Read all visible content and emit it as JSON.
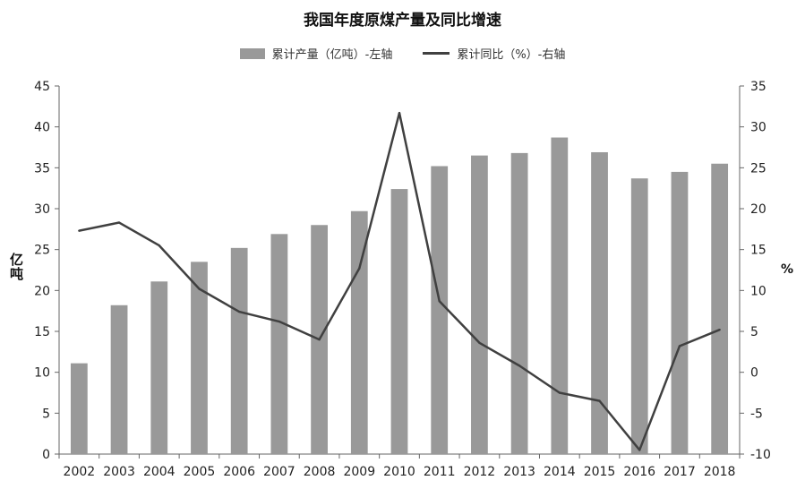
{
  "chart_data": {
    "type": "bar",
    "title": "我国年度原煤产量及同比增速",
    "categories": [
      "2002",
      "2003",
      "2004",
      "2005",
      "2006",
      "2007",
      "2008",
      "2009",
      "2010",
      "2011",
      "2012",
      "2013",
      "2014",
      "2015",
      "2016",
      "2017",
      "2018"
    ],
    "series": [
      {
        "name": "累计产量（亿吨）-左轴",
        "type": "bar",
        "axis": "left",
        "color": "#999999",
        "values": [
          11.1,
          18.2,
          21.1,
          23.5,
          25.2,
          26.9,
          28.0,
          29.7,
          32.4,
          35.2,
          36.5,
          36.8,
          38.7,
          36.9,
          33.7,
          34.5,
          35.5
        ]
      },
      {
        "name": "累计同比（%）-右轴",
        "type": "line",
        "axis": "right",
        "color": "#404040",
        "values": [
          17.3,
          18.3,
          15.5,
          10.2,
          7.4,
          6.2,
          4.0,
          12.7,
          31.7,
          8.7,
          3.6,
          0.8,
          -2.5,
          -3.5,
          -9.5,
          3.2,
          5.2
        ]
      }
    ],
    "y_left": {
      "label": "亿吨",
      "min": 0,
      "max": 45,
      "ticks": [
        0,
        5,
        10,
        15,
        20,
        25,
        30,
        35,
        40,
        45
      ]
    },
    "y_right": {
      "label": "%",
      "min": -10,
      "max": 35,
      "ticks": [
        -10,
        -5,
        0,
        5,
        10,
        15,
        20,
        25,
        30,
        35
      ]
    },
    "legend_position": "top-center",
    "grid": false
  }
}
